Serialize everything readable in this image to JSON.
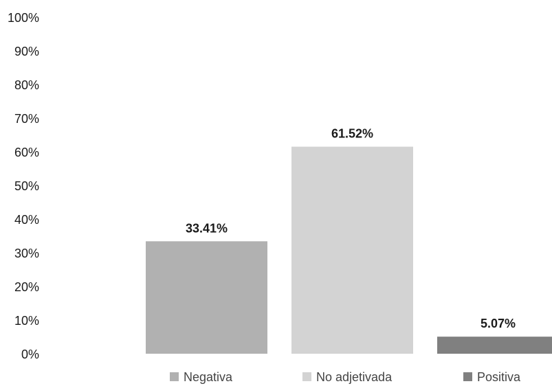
{
  "chart_data": {
    "type": "bar",
    "categories": [
      "Negativa",
      "No adjetivada",
      "Positiva"
    ],
    "values": [
      33.41,
      61.52,
      5.07
    ],
    "value_labels": [
      "33.41%",
      "61.52%",
      "5.07%"
    ],
    "colors": [
      "#b1b1b1",
      "#d3d3d3",
      "#808080"
    ],
    "ylim": [
      0,
      100
    ],
    "y_ticks": [
      0,
      10,
      20,
      30,
      40,
      50,
      60,
      70,
      80,
      90,
      100
    ],
    "y_tick_labels": [
      "0%",
      "10%",
      "20%",
      "30%",
      "40%",
      "50%",
      "60%",
      "70%",
      "80%",
      "90%",
      "100%"
    ],
    "grid": false,
    "legend": {
      "position": "bottom",
      "entries": [
        "Negativa",
        "No adjetivada",
        "Positiva"
      ]
    }
  }
}
